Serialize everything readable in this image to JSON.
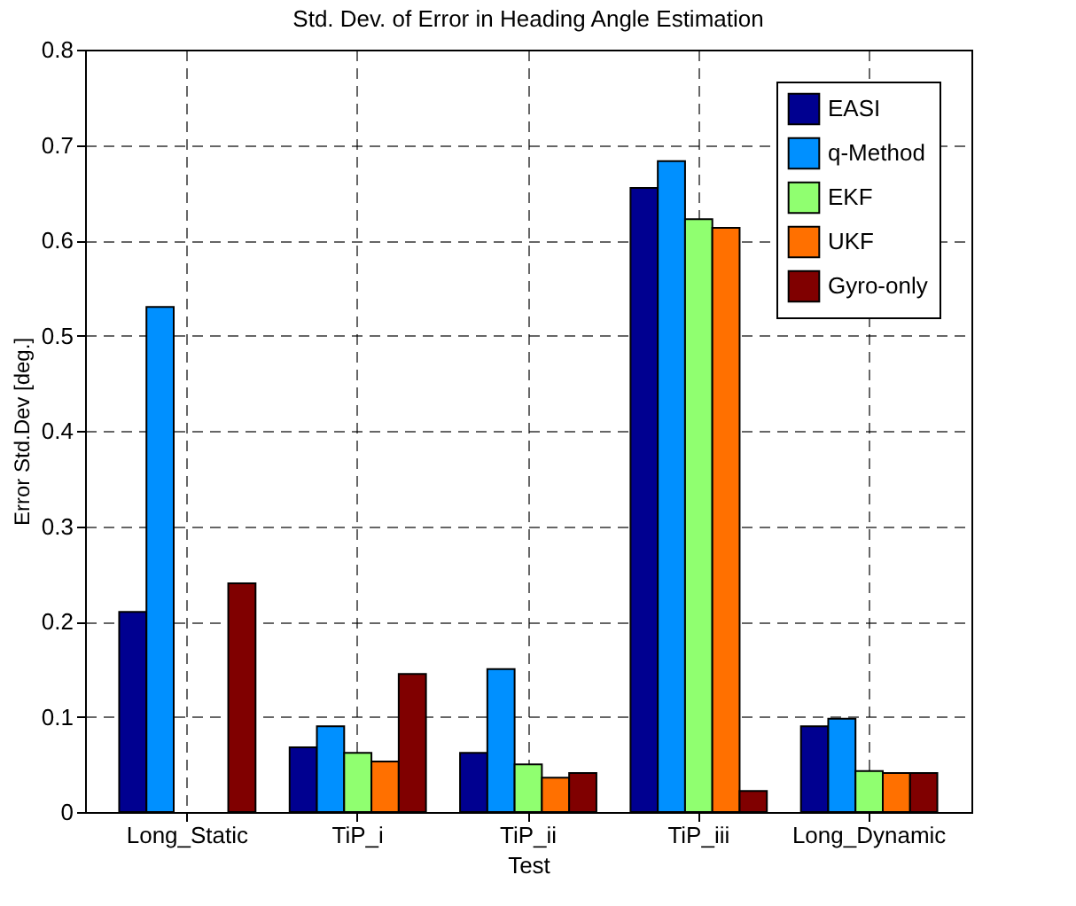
{
  "chart_data": {
    "type": "bar",
    "title": "Std. Dev. of Error in Heading Angle Estimation",
    "xlabel": "Test",
    "ylabel": "Error Std.Dev [deg.]",
    "categories": [
      "Long_Static",
      "TiP_i",
      "TiP_ii",
      "TiP_iii",
      "Long_Dynamic"
    ],
    "series": [
      {
        "name": "EASI",
        "color": "#000090",
        "values": [
          0.21,
          0.068,
          0.062,
          0.655,
          0.09
        ]
      },
      {
        "name": "q-Method",
        "color": "#0090ff",
        "values": [
          0.53,
          0.09,
          0.15,
          0.683,
          0.098
        ]
      },
      {
        "name": "EKF",
        "color": "#90ff70",
        "values": [
          null,
          0.062,
          0.05,
          0.622,
          0.043
        ]
      },
      {
        "name": "UKF",
        "color": "#ff7000",
        "values": [
          null,
          0.053,
          0.036,
          0.613,
          0.041
        ]
      },
      {
        "name": "Gyro-only",
        "color": "#800000",
        "values": [
          0.24,
          0.145,
          0.041,
          0.022,
          0.041
        ]
      }
    ],
    "ylim": [
      0,
      0.8
    ],
    "yticks": [
      0,
      0.1,
      0.2,
      0.3,
      0.4,
      0.5,
      0.6,
      0.7,
      0.8
    ],
    "grid": true,
    "legend": "top right"
  }
}
